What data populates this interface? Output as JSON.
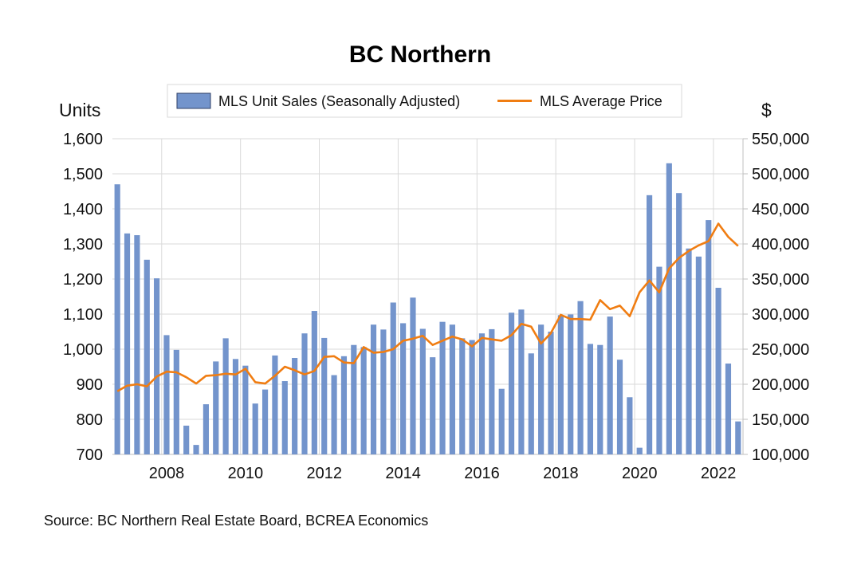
{
  "chart_data": {
    "type": "bar",
    "title": "BC Northern",
    "left_axis_label": "Units",
    "right_axis_label": "$",
    "source": "Source:  BC Northern Real Estate Board, BCREA Economics",
    "legend": {
      "bars": "MLS Unit Sales (Seasonally Adjusted)",
      "line": "MLS Average Price",
      "placement": "top-center"
    },
    "colors": {
      "bars": "#7394cc",
      "line": "#f07d12",
      "grid": "#d9d9d9"
    },
    "grid": true,
    "x_tick_labels": [
      "2008",
      "2010",
      "2012",
      "2014",
      "2016",
      "2018",
      "2020",
      "2022"
    ],
    "y_left": {
      "min": 700,
      "max": 1600,
      "ticks": [
        "700",
        "800",
        "900",
        "1,000",
        "1,100",
        "1,200",
        "1,300",
        "1,400",
        "1,500",
        "1,600"
      ]
    },
    "y_right": {
      "min": 100000,
      "max": 550000,
      "ticks": [
        "100,000",
        "150,000",
        "200,000",
        "250,000",
        "300,000",
        "350,000",
        "400,000",
        "450,000",
        "500,000",
        "550,000"
      ]
    },
    "x": [
      "Q4 2006",
      "Q1 2007",
      "Q2 2007",
      "Q3 2007",
      "Q4 2007",
      "Q1 2008",
      "Q2 2008",
      "Q3 2008",
      "Q4 2008",
      "Q1 2009",
      "Q2 2009",
      "Q3 2009",
      "Q4 2009",
      "Q1 2010",
      "Q2 2010",
      "Q3 2010",
      "Q4 2010",
      "Q1 2011",
      "Q2 2011",
      "Q3 2011",
      "Q4 2011",
      "Q1 2012",
      "Q2 2012",
      "Q3 2012",
      "Q4 2012",
      "Q1 2013",
      "Q2 2013",
      "Q3 2013",
      "Q4 2013",
      "Q1 2014",
      "Q2 2014",
      "Q3 2014",
      "Q4 2014",
      "Q1 2015",
      "Q2 2015",
      "Q3 2015",
      "Q4 2015",
      "Q1 2016",
      "Q2 2016",
      "Q3 2016",
      "Q4 2016",
      "Q1 2017",
      "Q2 2017",
      "Q3 2017",
      "Q4 2017",
      "Q1 2018",
      "Q2 2018",
      "Q3 2018",
      "Q4 2018",
      "Q1 2019",
      "Q2 2019",
      "Q3 2019",
      "Q4 2019",
      "Q1 2020",
      "Q2 2020",
      "Q3 2020",
      "Q4 2020",
      "Q1 2021",
      "Q2 2021",
      "Q3 2021",
      "Q4 2021",
      "Q1 2022",
      "Q2 2022",
      "Q3 2022"
    ],
    "series": [
      {
        "name": "MLS Unit Sales (Seasonally Adjusted)",
        "axis": "left",
        "values": [
          1470,
          1330,
          1325,
          1255,
          1202,
          1040,
          998,
          782,
          727,
          843,
          965,
          1031,
          972,
          953,
          845,
          885,
          982,
          909,
          975,
          1045,
          1109,
          1032,
          926,
          980,
          1012,
          1006,
          1070,
          1056,
          1133,
          1074,
          1147,
          1058,
          977,
          1078,
          1070,
          1031,
          1026,
          1045,
          1057,
          887,
          1104,
          1113,
          988,
          1070,
          1050,
          1097,
          1099,
          1137,
          1015,
          1012,
          1093,
          970,
          863,
          719,
          1439,
          1235,
          1530,
          1445,
          1287,
          1264,
          1368,
          1175,
          959,
          794
        ]
      },
      {
        "name": "MLS Average Price",
        "axis": "right",
        "values": [
          190000,
          198000,
          200000,
          197000,
          211000,
          218000,
          217000,
          210000,
          201000,
          212000,
          213000,
          215000,
          214000,
          222000,
          203000,
          201000,
          212000,
          225000,
          220000,
          214000,
          219000,
          239000,
          240000,
          231000,
          230000,
          253000,
          245000,
          246000,
          250000,
          262000,
          265000,
          269000,
          256000,
          262000,
          268000,
          264000,
          254000,
          266000,
          264000,
          262000,
          270000,
          286000,
          282000,
          258000,
          273000,
          299000,
          293000,
          293000,
          292000,
          320000,
          307000,
          312000,
          297000,
          331000,
          348000,
          331000,
          365000,
          380000,
          390000,
          398000,
          404000,
          429000,
          410000,
          397000
        ]
      }
    ]
  }
}
